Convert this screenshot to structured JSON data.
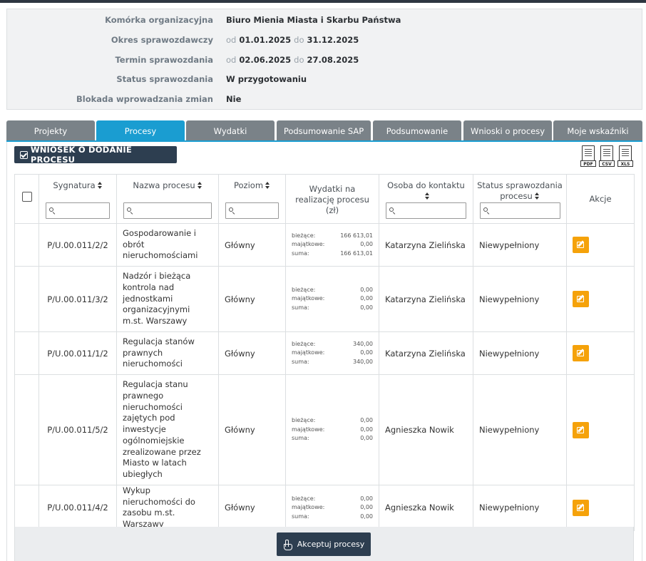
{
  "info": {
    "komorka": {
      "label": "Komórka organizacyjna",
      "value": "Biuro Mienia Miasta i Skarbu Państwa"
    },
    "okres": {
      "label": "Okres sprawozdawczy",
      "od": "od",
      "from": "01.01.2025",
      "do": "do",
      "to": "31.12.2025"
    },
    "termin": {
      "label": "Termin sprawozdania",
      "od": "od",
      "from": "02.06.2025",
      "do": "do",
      "to": "27.08.2025"
    },
    "status": {
      "label": "Status sprawozdania",
      "value": "W przygotowaniu"
    },
    "blokada": {
      "label": "Blokada wprowadzania zmian",
      "value": "Nie"
    }
  },
  "tabs": [
    {
      "label": "Projekty",
      "active": false
    },
    {
      "label": "Procesy",
      "active": true
    },
    {
      "label": "Wydatki",
      "active": false
    },
    {
      "label": "Podsumowanie SAP",
      "active": false
    },
    {
      "label": "Podsumowanie",
      "active": false
    },
    {
      "label": "Wnioski o procesy",
      "active": false
    },
    {
      "label": "Moje wskaźniki",
      "active": false
    }
  ],
  "toolbar": {
    "wniosek_label": "WNIOSEK O DODANIE PROCESU",
    "export": [
      "PDF",
      "CSV",
      "XLS"
    ]
  },
  "table": {
    "headers": {
      "sygnatura": "Sygnatura",
      "nazwa": "Nazwa procesu",
      "poziom": "Poziom",
      "wydatki": "Wydatki na realizację procesu (zł)",
      "osoba": "Osoba do kontaktu",
      "status": "Status sprawozdania procesu",
      "akcje": "Akcje"
    },
    "kw_labels": {
      "biezace": "bieżące:",
      "majatkowe": "majątkowe:",
      "suma": "suma:"
    },
    "rows": [
      {
        "sygnatura": "P/U.00.011/2/2",
        "nazwa": "Gospodarowanie i obrót nieruchomościami",
        "poziom": "Główny",
        "biezace": "166 613,01",
        "majatkowe": "0,00",
        "suma": "166 613,01",
        "osoba": "Katarzyna Zielińska",
        "status": "Niewypełniony"
      },
      {
        "sygnatura": "P/U.00.011/3/2",
        "nazwa": "Nadzór i bieżąca kontrola nad jednostkami organizacyjnymi m.st. Warszawy",
        "poziom": "Główny",
        "biezace": "0,00",
        "majatkowe": "0,00",
        "suma": "0,00",
        "osoba": "Katarzyna Zielińska",
        "status": "Niewypełniony"
      },
      {
        "sygnatura": "P/U.00.011/1/2",
        "nazwa": "Regulacja stanów prawnych nieruchomości",
        "poziom": "Główny",
        "biezace": "340,00",
        "majatkowe": "0,00",
        "suma": "340,00",
        "osoba": "Katarzyna Zielińska",
        "status": "Niewypełniony"
      },
      {
        "sygnatura": "P/U.00.011/5/2",
        "nazwa": "Regulacja stanu prawnego nieruchomości zajętych pod inwestycje ogólnomiejskie zrealizowane przez Miasto w latach ubiegłych",
        "poziom": "Główny",
        "biezace": "0,00",
        "majatkowe": "0,00",
        "suma": "0,00",
        "osoba": "Agnieszka Nowik",
        "status": "Niewypełniony"
      },
      {
        "sygnatura": "P/U.00.011/4/2",
        "nazwa": "Wykup nieruchomości do zasobu m.st. Warszawy",
        "poziom": "Główny",
        "biezace": "0,00",
        "majatkowe": "0,00",
        "suma": "0,00",
        "osoba": "Agnieszka Nowik",
        "status": "Niewypełniony"
      }
    ]
  },
  "footer": {
    "accept_label": "Akceptuj procesy"
  },
  "colors": {
    "accent": "#1a9dd1",
    "tab": "#7a8288",
    "dark_button": "#2d3e50",
    "edit": "#f5a20a"
  }
}
